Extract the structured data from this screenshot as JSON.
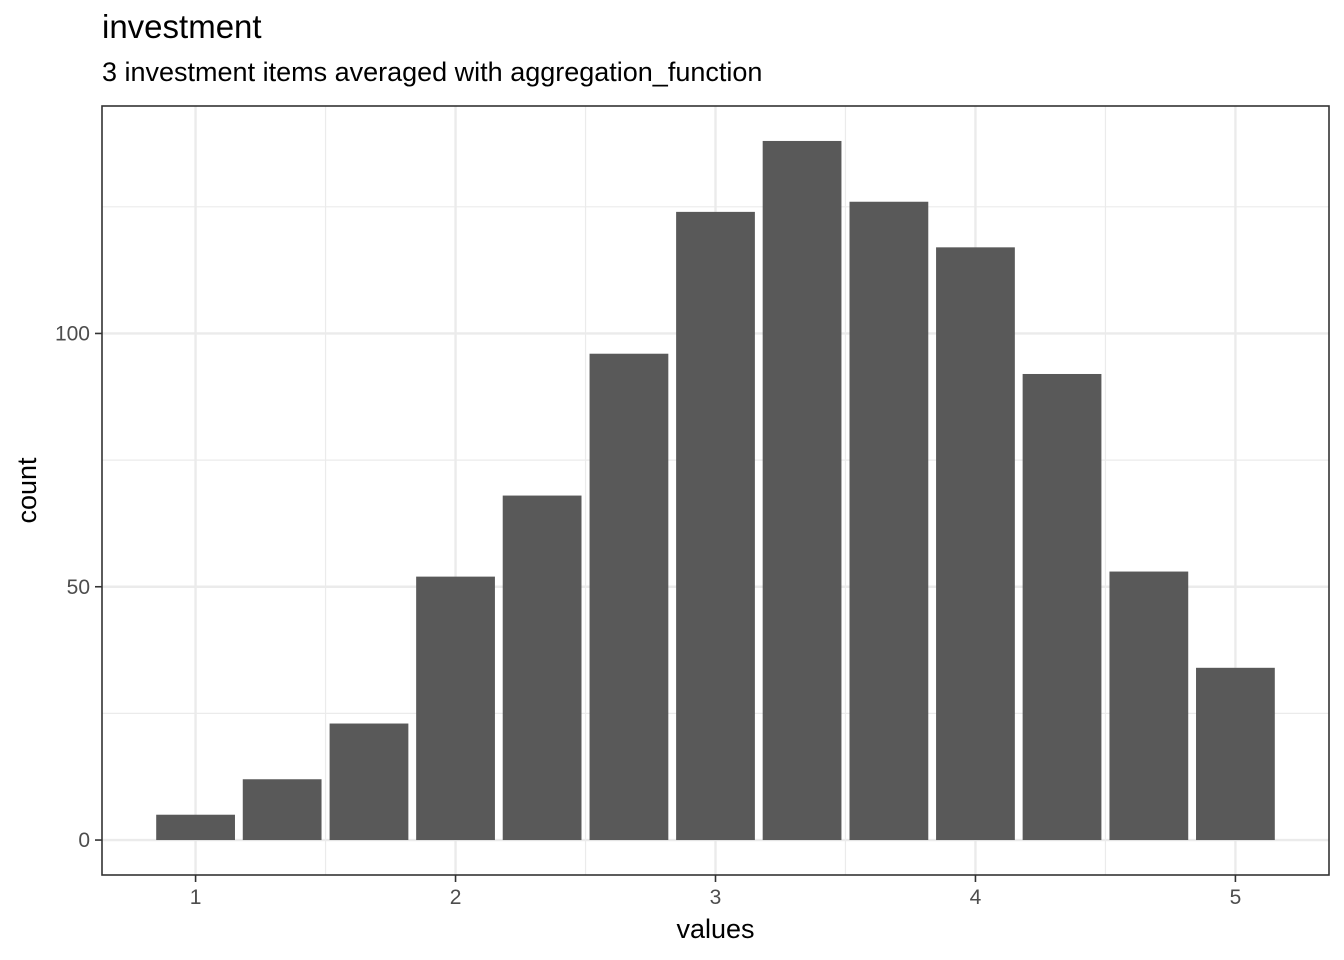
{
  "chart_data": {
    "type": "bar",
    "title": "investment",
    "subtitle": "3 investment items averaged with aggregation_function",
    "xlabel": "values",
    "ylabel": "count",
    "x": [
      1.0,
      1.333,
      1.667,
      2.0,
      2.333,
      2.667,
      3.0,
      3.333,
      3.667,
      4.0,
      4.333,
      4.667,
      5.0
    ],
    "values": [
      5,
      12,
      23,
      52,
      68,
      96,
      124,
      138,
      126,
      117,
      92,
      53,
      34
    ],
    "xlim": [
      0.64,
      5.36
    ],
    "ylim": [
      -6.9,
      144.9
    ],
    "x_ticks": [
      1,
      2,
      3,
      4,
      5
    ],
    "y_ticks": [
      0,
      50,
      100
    ],
    "grid": true,
    "bar_color": "#595959",
    "panel_border_color": "#333333",
    "grid_color": "#ebebeb"
  }
}
